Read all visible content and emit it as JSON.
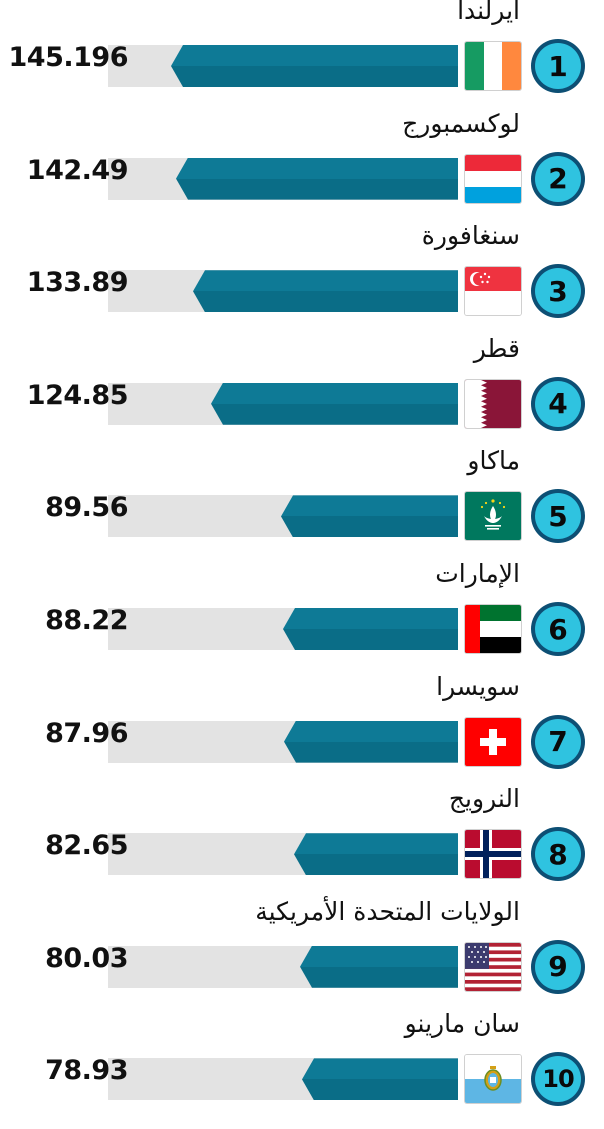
{
  "chart_data": {
    "type": "bar",
    "orientation": "horizontal",
    "categories": [
      "أيرلندا",
      "لوكسمبورج",
      "سنغافورة",
      "قطر",
      "ماكاو",
      "الإمارات",
      "سويسرا",
      "النرويج",
      "الولايات المتحدة الأمريكية",
      "سان مارينو"
    ],
    "values": [
      145.196,
      142.49,
      133.89,
      124.85,
      89.56,
      88.22,
      87.96,
      82.65,
      80.03,
      78.93
    ],
    "value_labels": [
      "145.196",
      "142.49",
      "133.89",
      "124.85",
      "89.56",
      "88.22",
      "87.96",
      "82.65",
      "80.03",
      "78.93"
    ],
    "ranks": [
      "1",
      "2",
      "3",
      "4",
      "5",
      "6",
      "7",
      "8",
      "9",
      "10"
    ],
    "flags": [
      "ireland-flag",
      "luxembourg-flag",
      "singapore-flag",
      "qatar-flag",
      "macau-flag",
      "uae-flag",
      "switzerland-flag",
      "norway-flag",
      "usa-flag",
      "san-marino-flag"
    ],
    "colors": {
      "bar": "#0e7a96",
      "track": "#e3e3e3",
      "rank_circle": "#2fc3e0",
      "rank_ring": "#0d4f74"
    }
  }
}
